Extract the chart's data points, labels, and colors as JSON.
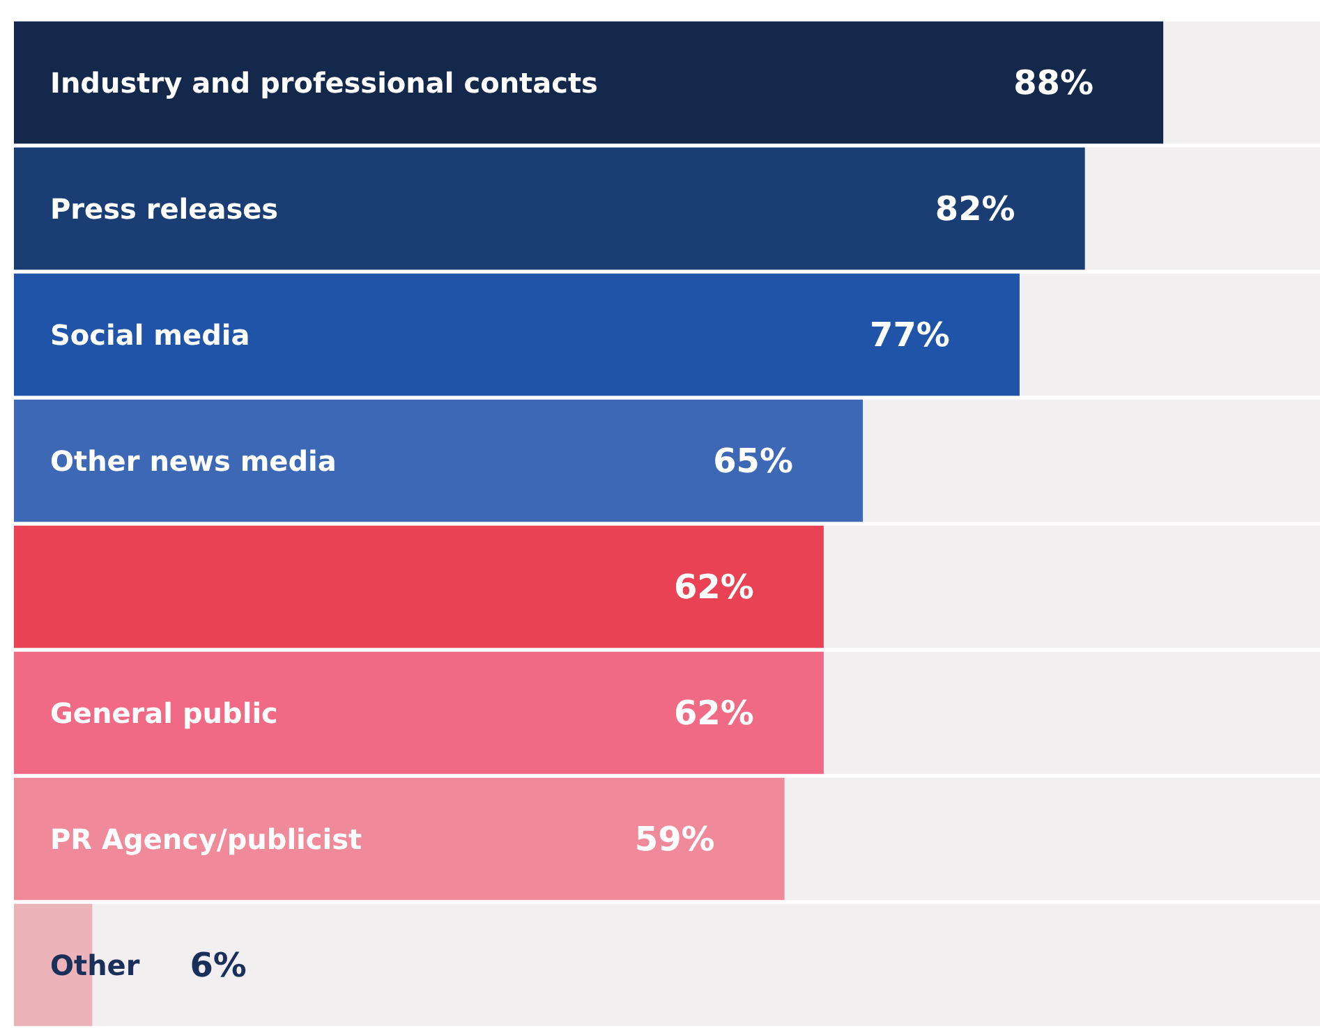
{
  "chart_data": {
    "type": "bar",
    "orientation": "horizontal",
    "categories": [
      "Industry and professional contacts",
      "Press releases",
      "Social media",
      "Other news media",
      null,
      "General public",
      "PR Agency/publicist",
      "Other"
    ],
    "values": [
      88,
      82,
      77,
      65,
      62,
      62,
      59,
      6
    ],
    "colors": [
      "#13284a",
      "#1a3d73",
      "#1f54a8",
      "#3d68b5",
      "#e94255",
      "#f06a85",
      "#f08a9b",
      "#ecb3b9"
    ],
    "value_labels": [
      "88%",
      "82%",
      "77%",
      "65%",
      "62%",
      "62%",
      "59%",
      "6%"
    ],
    "xlim": [
      0,
      100
    ],
    "tick_labels": false
  }
}
